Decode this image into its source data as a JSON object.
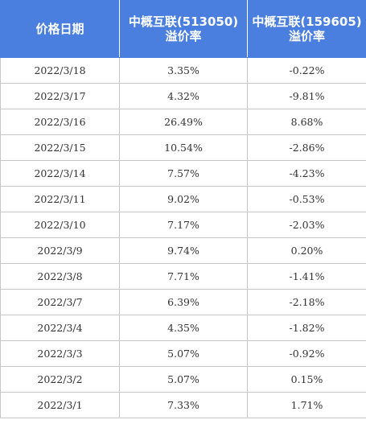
{
  "table": {
    "headers": [
      {
        "line1": "价格日期",
        "line2": ""
      },
      {
        "line1": "中概互联(513050)",
        "line2": "溢价率"
      },
      {
        "line1": "中概互联(159605)",
        "line2": "溢价率"
      }
    ],
    "rows": [
      {
        "date": "2022/3/18",
        "premium_513050": "3.35%",
        "premium_159605": "-0.22%"
      },
      {
        "date": "2022/3/17",
        "premium_513050": "4.32%",
        "premium_159605": "-9.81%"
      },
      {
        "date": "2022/3/16",
        "premium_513050": "26.49%",
        "premium_159605": "8.68%"
      },
      {
        "date": "2022/3/15",
        "premium_513050": "10.54%",
        "premium_159605": "-2.86%"
      },
      {
        "date": "2022/3/14",
        "premium_513050": "7.57%",
        "premium_159605": "-4.23%"
      },
      {
        "date": "2022/3/11",
        "premium_513050": "9.02%",
        "premium_159605": "-0.53%"
      },
      {
        "date": "2022/3/10",
        "premium_513050": "7.17%",
        "premium_159605": "-2.03%"
      },
      {
        "date": "2022/3/9",
        "premium_513050": "9.74%",
        "premium_159605": "0.20%"
      },
      {
        "date": "2022/3/8",
        "premium_513050": "7.71%",
        "premium_159605": "-1.41%"
      },
      {
        "date": "2022/3/7",
        "premium_513050": "6.39%",
        "premium_159605": "-2.18%"
      },
      {
        "date": "2022/3/4",
        "premium_513050": "4.35%",
        "premium_159605": "-1.82%"
      },
      {
        "date": "2022/3/3",
        "premium_513050": "5.07%",
        "premium_159605": "-0.92%"
      },
      {
        "date": "2022/3/2",
        "premium_513050": "5.07%",
        "premium_159605": "0.15%"
      },
      {
        "date": "2022/3/1",
        "premium_513050": "7.33%",
        "premium_159605": "1.71%"
      }
    ]
  },
  "colors": {
    "header_background": "#4a7fe0",
    "header_text": "#ffffff",
    "grid_line": "#c7c7c7",
    "cell_text": "#333333"
  }
}
